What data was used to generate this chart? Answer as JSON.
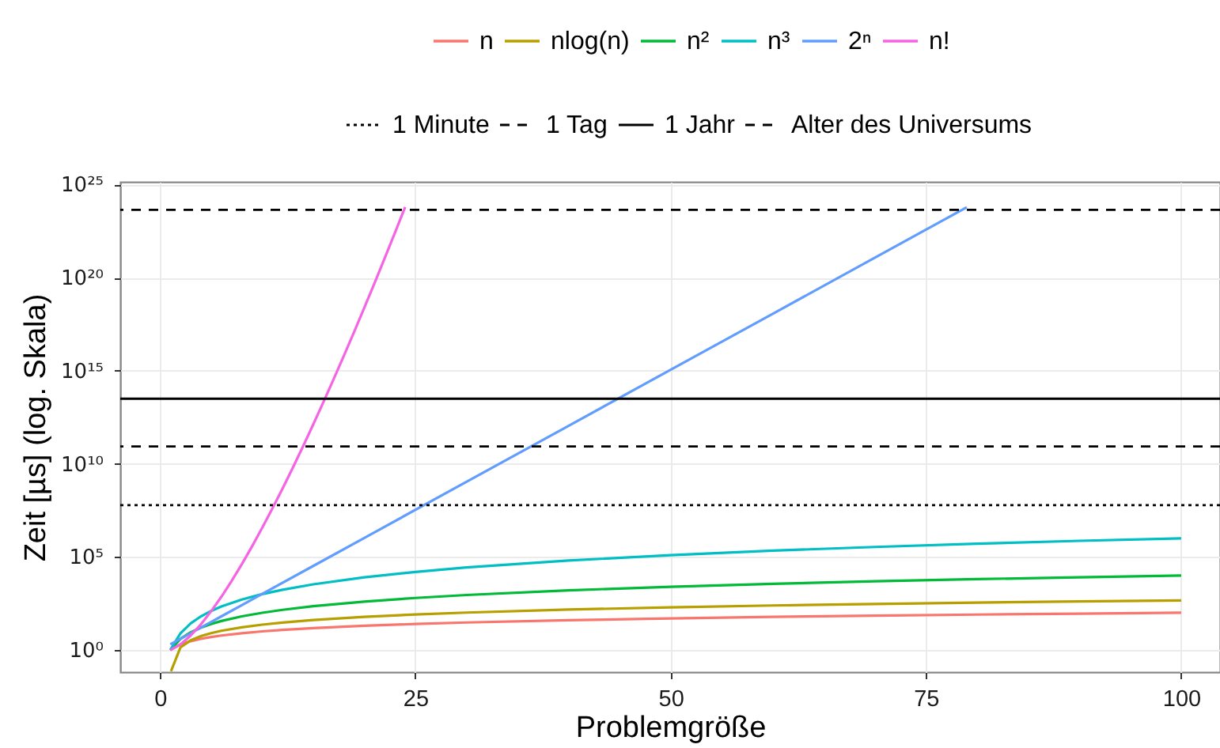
{
  "chart_data": {
    "type": "line",
    "xlabel": "Problemgröße",
    "ylabel": "Zeit [µs] (log. Skala)",
    "xlim": [
      -3.9,
      103.8
    ],
    "xticks": [
      0,
      25,
      50,
      75,
      100
    ],
    "ylim": [
      0.065,
      1.4e+25
    ],
    "yticks": [
      {
        "value": 1,
        "label": "10⁰"
      },
      {
        "value": 100000.0,
        "label": "10⁵"
      },
      {
        "value": 10000000000.0,
        "label": "10¹⁰"
      },
      {
        "value": 1000000000000000.0,
        "label": "10¹⁵"
      },
      {
        "value": 1e+20,
        "label": "10²⁰"
      },
      {
        "value": 1e+25,
        "label": "10²⁵"
      }
    ],
    "log": "y",
    "grid": true,
    "legend": "top",
    "series": [
      {
        "name": "n",
        "color": "#f8766d",
        "x": [
          1,
          2,
          3,
          4,
          5,
          6,
          8,
          10,
          12,
          15,
          20,
          25,
          30,
          40,
          50,
          60,
          70,
          80,
          90,
          100
        ],
        "values": [
          1,
          2,
          3,
          4,
          5,
          6,
          8,
          10,
          12,
          15,
          20,
          25,
          30,
          40,
          50,
          60,
          70,
          80,
          90,
          100
        ]
      },
      {
        "name": "nlog(n)",
        "color": "#b79f00",
        "x": [
          1.07,
          2,
          3,
          4,
          5,
          6,
          8,
          10,
          12,
          15,
          20,
          25,
          30,
          40,
          50,
          60,
          70,
          80,
          90,
          100
        ],
        "values": [
          0.0724,
          1.39,
          3.3,
          5.55,
          8.05,
          10.8,
          16.6,
          23.0,
          29.8,
          40.6,
          59.9,
          80.5,
          102,
          148,
          196,
          246,
          297,
          351,
          405,
          461
        ]
      },
      {
        "name": "n²",
        "color": "#00ba38",
        "x": [
          1,
          2,
          3,
          4,
          5,
          6,
          8,
          10,
          12,
          15,
          20,
          25,
          30,
          40,
          50,
          60,
          70,
          80,
          90,
          100
        ],
        "values": [
          1,
          4,
          9,
          16,
          25,
          36,
          64,
          100,
          144,
          225,
          400,
          625,
          900,
          1600,
          2500,
          3600,
          4900,
          6400,
          8100,
          10000
        ]
      },
      {
        "name": "n³",
        "color": "#00bfc4",
        "x": [
          1,
          2,
          3,
          4,
          5,
          6,
          8,
          10,
          12,
          15,
          20,
          25,
          30,
          40,
          50,
          60,
          70,
          80,
          90,
          100
        ],
        "values": [
          1,
          8,
          27,
          64,
          125,
          216,
          512,
          1000,
          1728,
          3375,
          8000,
          15625,
          27000,
          64000,
          125000,
          216000,
          343000,
          512000,
          729000,
          1000000
        ]
      },
      {
        "name": "2ⁿ",
        "color": "#619cff",
        "x": [
          1,
          2,
          3,
          4,
          5,
          6,
          8,
          10,
          15,
          20,
          30,
          40,
          50,
          60,
          70,
          79
        ],
        "values": [
          2,
          4,
          8,
          16,
          32,
          64,
          256,
          1024,
          32768,
          1050000.0,
          1070000000.0,
          1100000000000.0,
          1130000000000000.0,
          1.15e+18,
          1.18e+21,
          6.04e+23
        ]
      },
      {
        "name": "n!",
        "color": "#f564e3",
        "x": [
          1,
          2,
          3,
          4,
          5,
          6,
          7,
          8,
          9,
          10,
          11,
          12,
          13,
          14,
          15,
          16,
          17,
          18,
          19,
          20,
          21,
          22,
          23,
          24
        ],
        "values": [
          1,
          2,
          6,
          24,
          120,
          720,
          5040,
          40320,
          362880,
          3630000.0,
          39900000.0,
          479000000.0,
          6230000000.0,
          87200000000.0,
          1310000000000.0,
          20900000000000.0,
          356000000000000.0,
          6400000000000000.0,
          1.22e+17,
          2.43e+18,
          5.11e+19,
          1.12e+21,
          2.59e+22,
          6.2e+23
        ]
      }
    ],
    "ref_lines": [
      {
        "axis": "y",
        "value": 60000000.0,
        "label": "1 Minute",
        "color": "#000000",
        "line_style": "dotted"
      },
      {
        "axis": "y",
        "value": 86400000000.0,
        "label": "1 Tag",
        "color": "#000000",
        "line_style": "dashed"
      },
      {
        "axis": "y",
        "value": 31500000000000.0,
        "label": "1 Jahr",
        "color": "#000000",
        "line_style": "solid"
      },
      {
        "axis": "y",
        "value": 4.4e+23,
        "label": "Alter des Universums",
        "color": "#000000",
        "line_style": "dashed"
      }
    ]
  }
}
